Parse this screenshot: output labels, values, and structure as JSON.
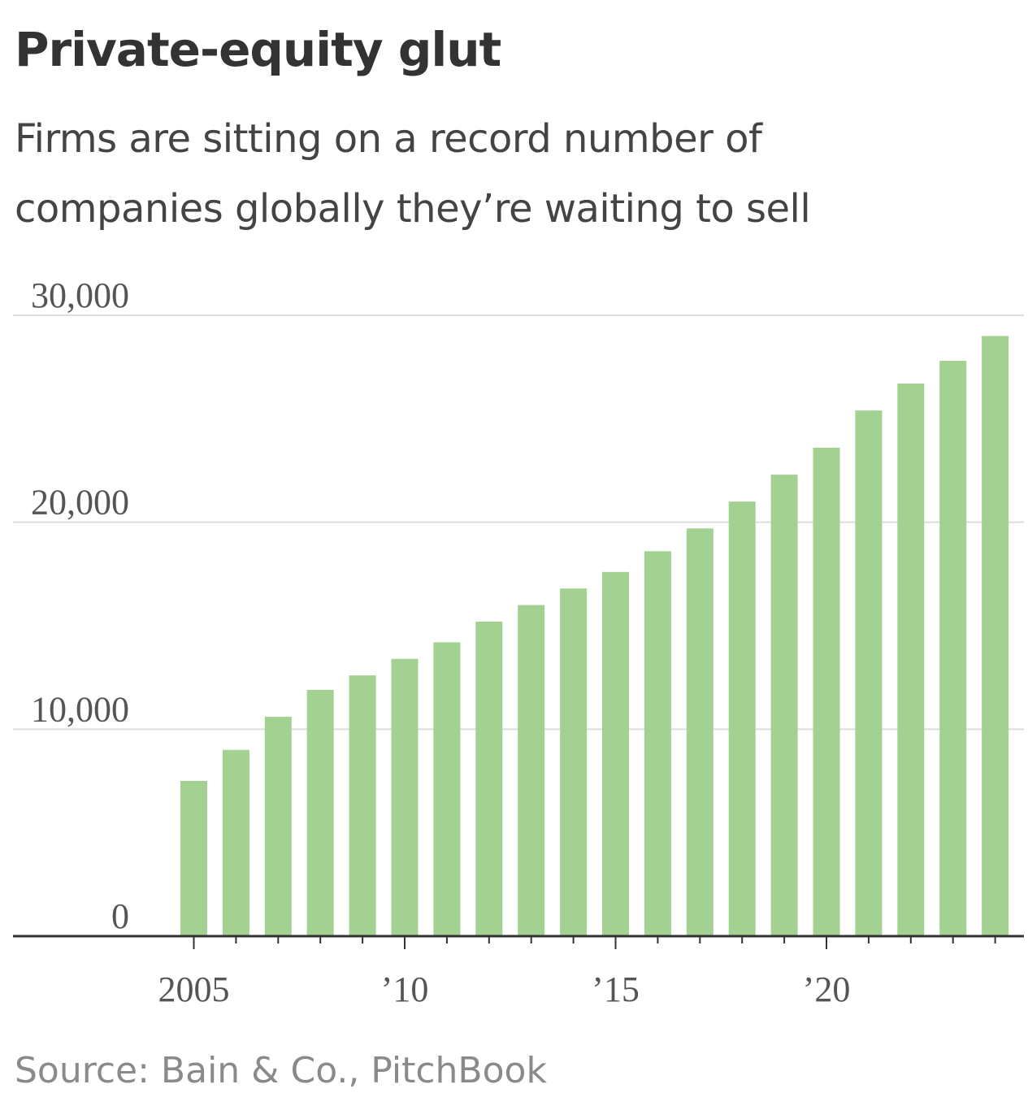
{
  "title": "Private-equity glut",
  "subtitle": "Firms are sitting on a record number of companies globally they’re waiting to sell",
  "source": "Source: Bain & Co., PitchBook",
  "colors": {
    "bar": "#a3d192",
    "grid": "#dddddd",
    "axis": "#333333",
    "text": "#333333"
  },
  "chart_data": {
    "type": "bar",
    "title": "Private-equity glut",
    "subtitle": "Firms are sitting on a record number of companies globally they’re waiting to sell",
    "xlabel": "",
    "ylabel": "",
    "ylim": [
      0,
      30000
    ],
    "grid": true,
    "yticks": [
      {
        "value": 0,
        "label": "0"
      },
      {
        "value": 10000,
        "label": "10,000"
      },
      {
        "value": 20000,
        "label": "20,000"
      },
      {
        "value": 30000,
        "label": "30,000"
      }
    ],
    "xticks": [
      {
        "year": 2005,
        "label": "2005"
      },
      {
        "year": 2010,
        "label": "’10"
      },
      {
        "year": 2015,
        "label": "’15"
      },
      {
        "year": 2020,
        "label": "’20"
      }
    ],
    "categories": [
      2005,
      2006,
      2007,
      2008,
      2009,
      2010,
      2011,
      2012,
      2013,
      2014,
      2015,
      2016,
      2017,
      2018,
      2019,
      2020,
      2021,
      2022,
      2023,
      2024
    ],
    "values": [
      7500,
      9000,
      10600,
      11900,
      12600,
      13400,
      14200,
      15200,
      16000,
      16800,
      17600,
      18600,
      19700,
      21000,
      22300,
      23600,
      25400,
      26700,
      27800,
      29000
    ]
  }
}
